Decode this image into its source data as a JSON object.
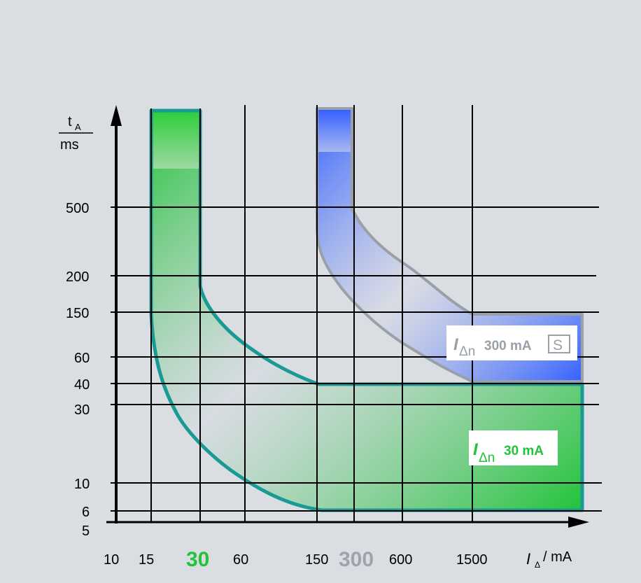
{
  "diagram": {
    "y_axis": {
      "label_top": "t",
      "label_top_sub": "A",
      "label_bottom": "ms",
      "ticks": [
        "500",
        "200",
        "150",
        "60",
        "40",
        "30",
        "10",
        "6",
        "5"
      ]
    },
    "x_axis": {
      "label_symbol": "I",
      "label_sub": "Δ",
      "label_unit": "/ mA",
      "ticks": [
        {
          "label": "10",
          "style": "normal"
        },
        {
          "label": "15",
          "style": "normal"
        },
        {
          "label": "30",
          "style": "highlight-green"
        },
        {
          "label": "60",
          "style": "normal"
        },
        {
          "label": "150",
          "style": "normal"
        },
        {
          "label": "300",
          "style": "highlight-gray"
        },
        {
          "label": "600",
          "style": "normal"
        },
        {
          "label": "1500",
          "style": "normal"
        }
      ]
    },
    "bands": {
      "green": {
        "label_symbol": "I",
        "label_sub": "Δn",
        "label_text": "30 mA",
        "color": "#22c33a",
        "outline": "#1a9a94"
      },
      "blue": {
        "label_symbol": "I",
        "label_sub": "Δn",
        "label_text": "300 mA",
        "label_box": "S",
        "color": "#3a66ff",
        "outline": "#9aa0a8"
      }
    },
    "colors": {
      "background": "#dadde2",
      "green_text": "#22c33a",
      "gray_text": "#a0a4aa"
    }
  }
}
